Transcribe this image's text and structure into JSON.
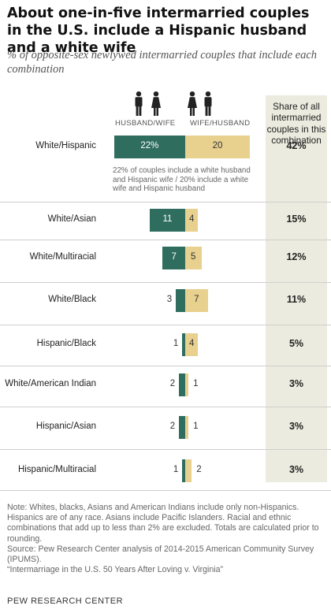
{
  "title": "About one-in-five intermarried couples in the U.S. include a Hispanic husband and a white wife",
  "subtitle": "% of opposite-sex newlywed intermarried couples that include each combination",
  "column_headers": {
    "left": "HUSBAND/WIFE",
    "right": "WIFE/HUSBAND",
    "share": "Share of all intermarried couples in this combination"
  },
  "annotation": "22% of couples include a white husband and Hispanic wife / 20% include a white wife and Hispanic husband",
  "notes": [
    "Note: Whites, blacks, Asians and American Indians include only non-Hispanics. Hispanics are of any race. Asians include Pacific Islanders. Racial and ethnic combinations that add up to less than 2% are excluded. Totals are calculated prior to rounding.",
    "Source: Pew Research Center analysis of 2014-2015 American Community Survey (IPUMS).",
    "“Intermarriage in the U.S. 50 Years After Loving v. Virginia”"
  ],
  "logo": "PEW RESEARCH CENTER",
  "colors": {
    "husband_wife": "#2F6E5F",
    "wife_husband": "#E8D08E",
    "share_column": "#EBEBDF"
  },
  "icons": [
    "man-icon",
    "woman-icon"
  ],
  "chart_data": {
    "type": "bar",
    "orientation": "horizontal",
    "stacked": "diverging",
    "categories": [
      "White/Hispanic",
      "White/Asian",
      "White/Multiracial",
      "White/Black",
      "Hispanic/Black",
      "White/American Indian",
      "Hispanic/Asian",
      "Hispanic/Multiracial"
    ],
    "series": [
      {
        "name": "HUSBAND/WIFE",
        "values": [
          22,
          11,
          7,
          3,
          1,
          2,
          2,
          1
        ],
        "labels": [
          "22%",
          "11",
          "7",
          "3",
          "1",
          "2",
          "2",
          "1"
        ]
      },
      {
        "name": "WIFE/HUSBAND",
        "values": [
          20,
          4,
          5,
          7,
          4,
          1,
          1,
          2
        ],
        "labels": [
          "20",
          "4",
          "5",
          "7",
          "4",
          "1",
          "1",
          "2"
        ]
      }
    ],
    "share": [
      "42%",
      "15%",
      "12%",
      "11%",
      "5%",
      "3%",
      "3%",
      "3%"
    ],
    "grid": false,
    "legend": "top"
  }
}
